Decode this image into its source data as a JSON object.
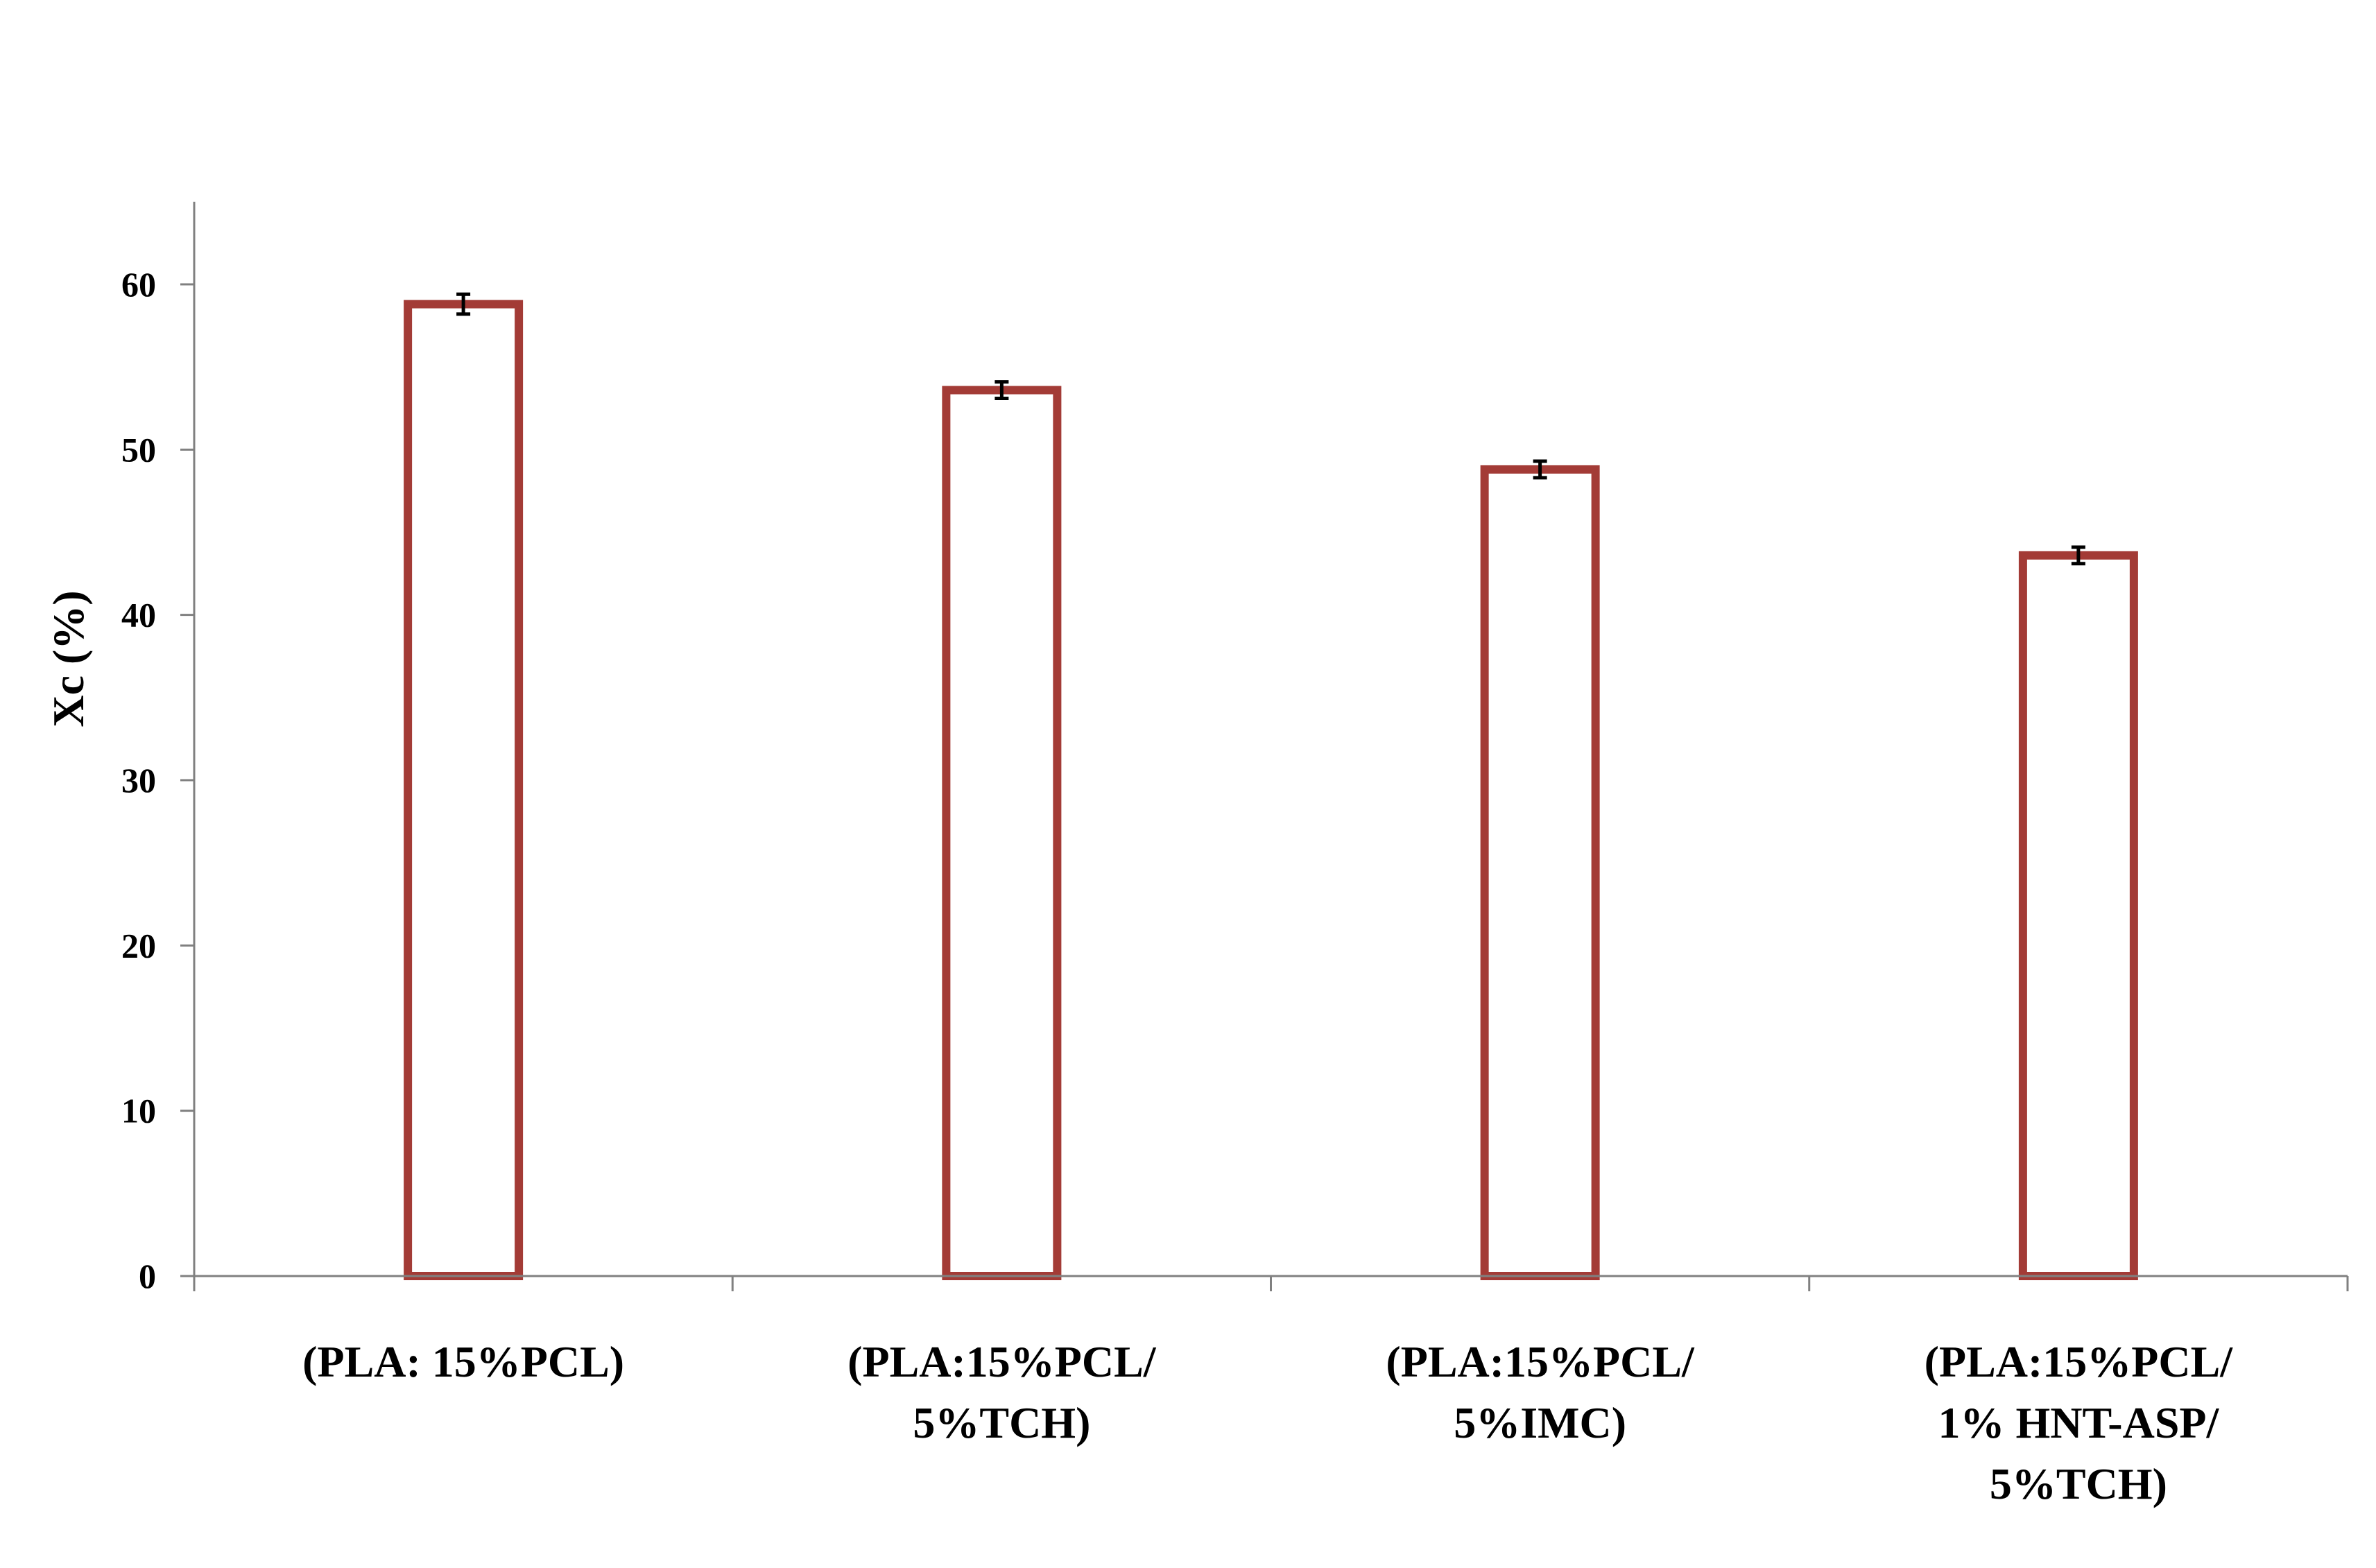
{
  "chart_data": {
    "type": "bar",
    "categories": [
      [
        "(PLA: 15%PCL)"
      ],
      [
        "(PLA:15%PCL/",
        "5%TCH)"
      ],
      [
        "(PLA:15%PCL/",
        "5%IMC)"
      ],
      [
        "(PLA:15%PCL/",
        "1% HNT-ASP/",
        "5%TCH)"
      ]
    ],
    "values": [
      58.8,
      53.6,
      48.8,
      43.6
    ],
    "errors": [
      0.6,
      0.5,
      0.5,
      0.5
    ],
    "title": "",
    "xlabel": "",
    "ylabel": "Xc (%)",
    "ylim": [
      0,
      65
    ],
    "yticks": [
      0,
      10,
      20,
      30,
      40,
      50,
      60
    ],
    "grid": false,
    "legend": "none",
    "colors": {
      "bar_edge": "#A33B36",
      "bar_fill": "#ffffff",
      "axis": "#808080",
      "error_bar": "#000000"
    }
  }
}
